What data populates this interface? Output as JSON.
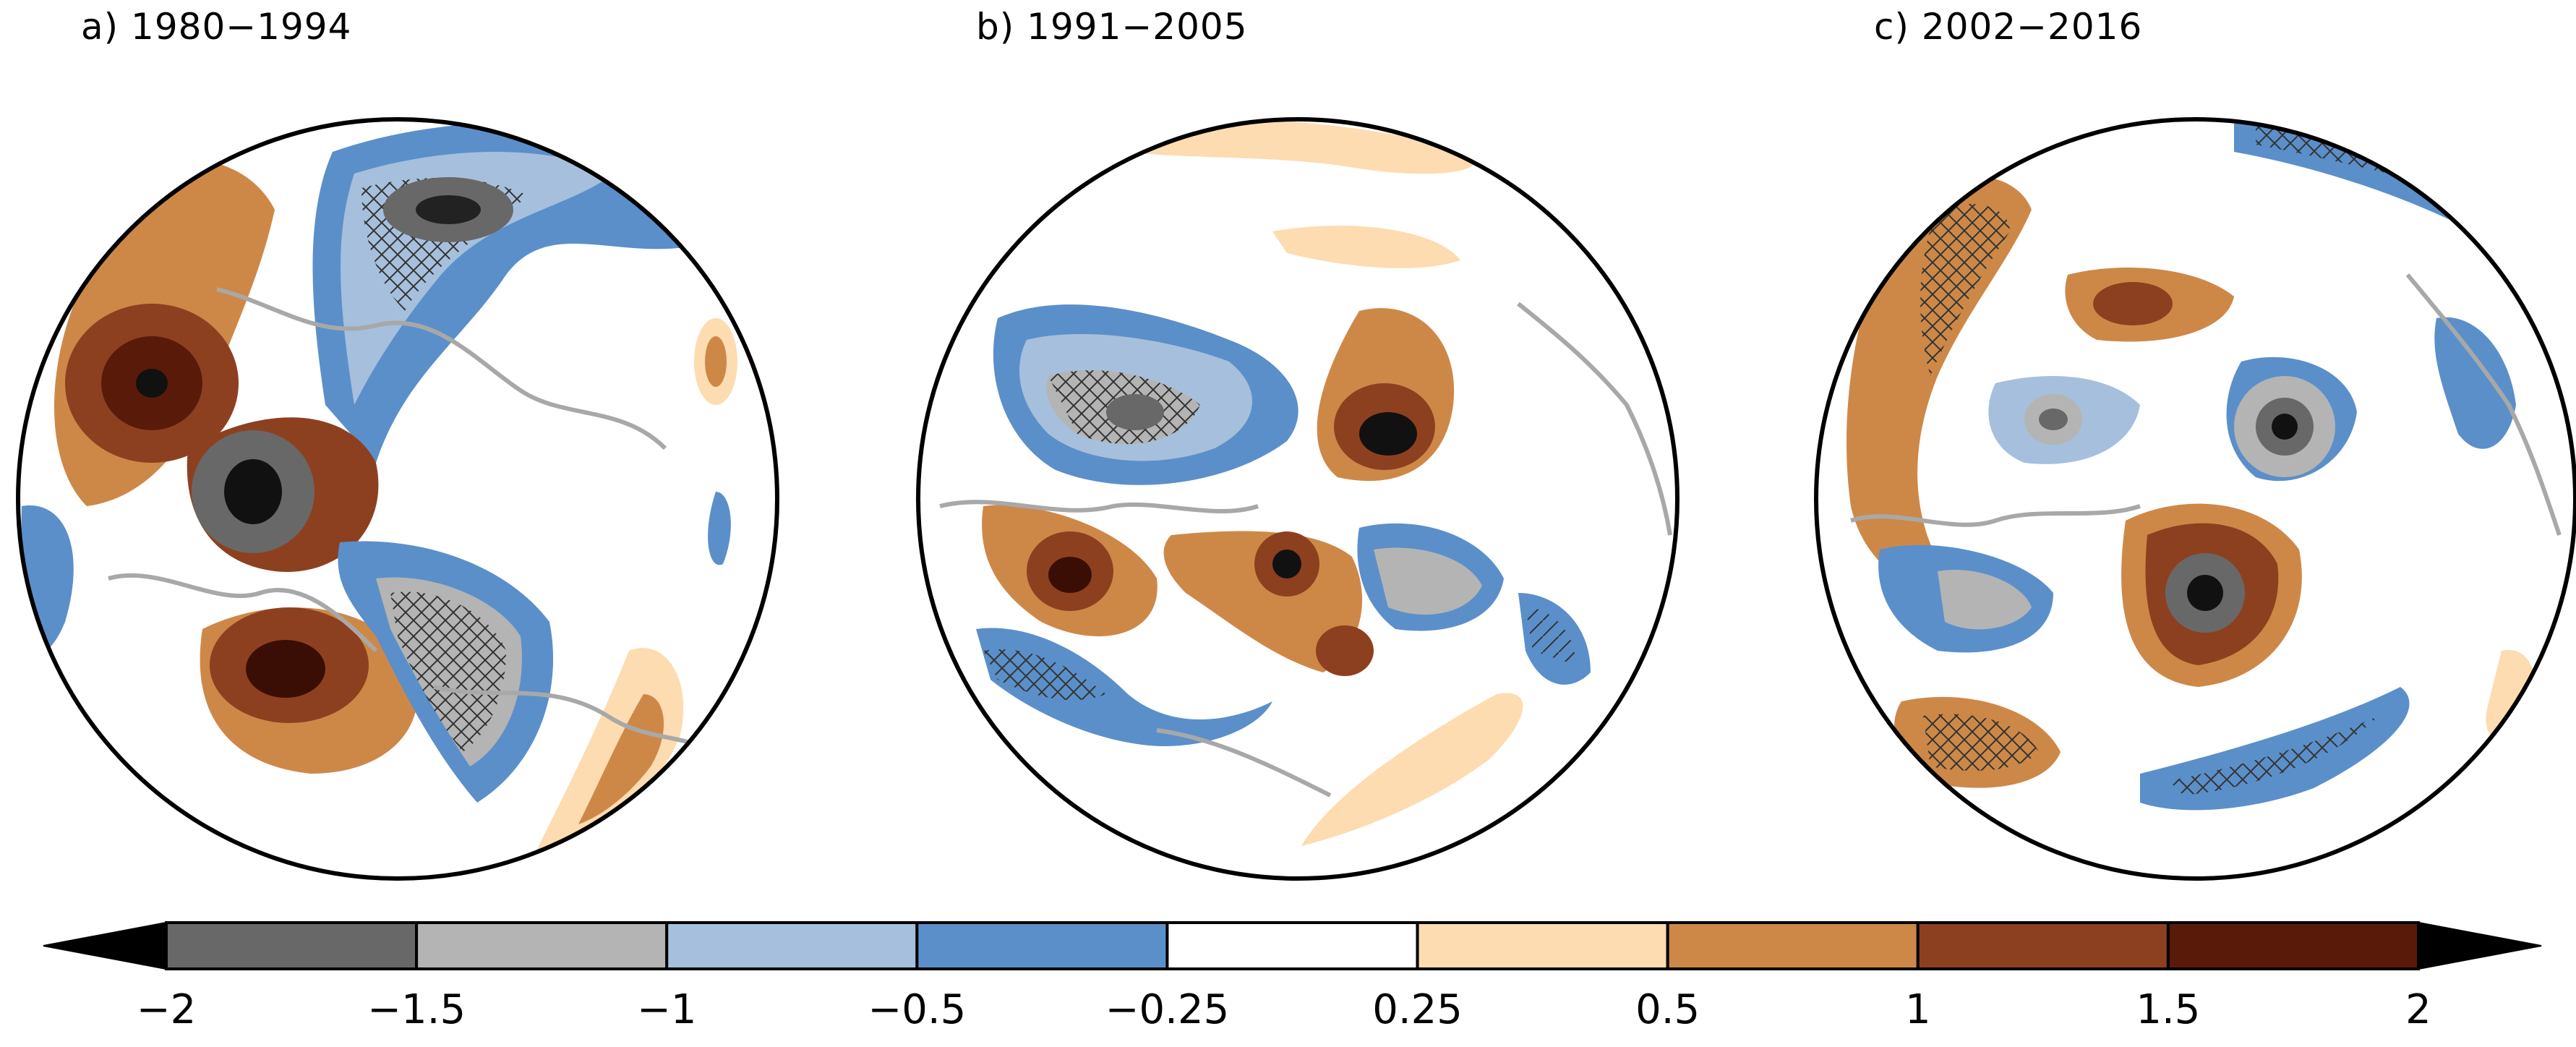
{
  "panels": [
    {
      "label": "a) 1980−1994"
    },
    {
      "label": "b) 1991−2005"
    },
    {
      "label": "c) 2002−2016"
    }
  ],
  "colorbar": {
    "ticks": [
      "−2",
      "−1.5",
      "−1",
      "−0.5",
      "−0.25",
      "0.25",
      "0.5",
      "1",
      "1.5",
      "2"
    ],
    "colors": [
      "#000000",
      "#686868",
      "#b4b4b4",
      "#a6bfdc",
      "#5b8fca",
      "#ffffff",
      "#fcdcb0",
      "#cd8848",
      "#8d4020",
      "#5a1a0a",
      "#000000"
    ]
  },
  "map_colors": {
    "neg_strong": "#686868",
    "neg_mid": "#b4b4b4",
    "neg_light": "#a6bfdc",
    "neg_weak": "#5b8fca",
    "pos_weak": "#fcdcb0",
    "pos_light": "#cd8848",
    "pos_mid": "#8d4020",
    "pos_strong": "#5a1a0a",
    "coast": "#a8a8a8"
  }
}
